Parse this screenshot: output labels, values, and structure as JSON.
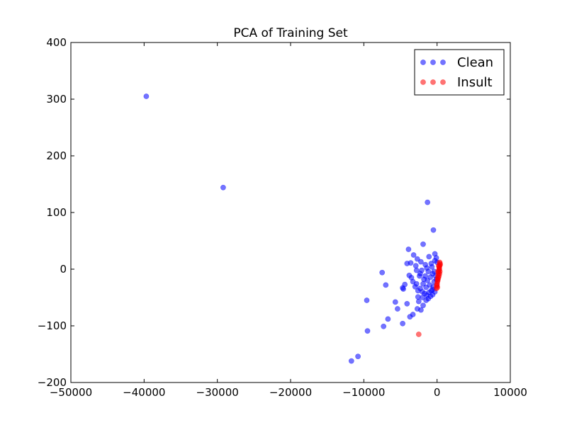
{
  "chart_data": {
    "type": "scatter",
    "title": "PCA of Training Set",
    "xlabel": "",
    "ylabel": "",
    "xlim": [
      -50000,
      10000
    ],
    "ylim": [
      -200,
      400
    ],
    "xticks": [
      -50000,
      -40000,
      -30000,
      -20000,
      -10000,
      0,
      10000
    ],
    "yticks": [
      -200,
      -100,
      0,
      100,
      200,
      300,
      400
    ],
    "grid": false,
    "legend_position": "top-right",
    "series": [
      {
        "name": "Clean",
        "color": "#0000ff",
        "opacity": 0.55,
        "points": [
          [
            -39700,
            305
          ],
          [
            -29200,
            144
          ],
          [
            -1300,
            118
          ],
          [
            -500,
            69
          ],
          [
            -1900,
            44
          ],
          [
            -3900,
            35
          ],
          [
            -3200,
            25
          ],
          [
            -300,
            27
          ],
          [
            -2700,
            18
          ],
          [
            -1100,
            22
          ],
          [
            -3600,
            11
          ],
          [
            -2200,
            13
          ],
          [
            -4100,
            10
          ],
          [
            -2900,
            6
          ],
          [
            -1600,
            8
          ],
          [
            -7500,
            -6
          ],
          [
            -3800,
            -11
          ],
          [
            -3500,
            -15
          ],
          [
            -2400,
            -12
          ],
          [
            -7000,
            -28
          ],
          [
            -4400,
            -27
          ],
          [
            -4700,
            -33
          ],
          [
            -4600,
            -35
          ],
          [
            -3300,
            -22
          ],
          [
            -2800,
            -26
          ],
          [
            -3000,
            -31
          ],
          [
            -2300,
            -34
          ],
          [
            -2000,
            -40
          ],
          [
            -1700,
            -43
          ],
          [
            -1400,
            -46
          ],
          [
            -1100,
            -41
          ],
          [
            -800,
            -38
          ],
          [
            -500,
            -31
          ],
          [
            -2600,
            -49
          ],
          [
            -1500,
            -55
          ],
          [
            -1200,
            -52
          ],
          [
            -2500,
            -57
          ],
          [
            -1900,
            -64
          ],
          [
            -2200,
            -72
          ],
          [
            -2700,
            -70
          ],
          [
            -4100,
            -61
          ],
          [
            -5700,
            -58
          ],
          [
            -5400,
            -70
          ],
          [
            -3300,
            -80
          ],
          [
            -3700,
            -84
          ],
          [
            -6700,
            -88
          ],
          [
            -9600,
            -55
          ],
          [
            -4700,
            -96
          ],
          [
            -7300,
            -101
          ],
          [
            -9500,
            -109
          ],
          [
            -10800,
            -154
          ],
          [
            -11700,
            -162
          ],
          [
            -600,
            -8
          ],
          [
            -900,
            -14
          ],
          [
            -1300,
            -20
          ],
          [
            -1800,
            -18
          ],
          [
            -2100,
            -2
          ],
          [
            -700,
            4
          ],
          [
            -400,
            -22
          ],
          [
            -1000,
            -28
          ],
          [
            -600,
            -36
          ],
          [
            -1500,
            -32
          ],
          [
            -200,
            -12
          ],
          [
            -300,
            15
          ],
          [
            -100,
            20
          ],
          [
            0,
            12
          ],
          [
            -800,
            10
          ],
          [
            -1400,
            2
          ],
          [
            -1900,
            -26
          ],
          [
            -2300,
            -8
          ],
          [
            -400,
            -4
          ],
          [
            -100,
            -18
          ],
          [
            -1200,
            -4
          ],
          [
            -2600,
            -38
          ],
          [
            -2000,
            -50
          ],
          [
            -900,
            -48
          ],
          [
            -600,
            -45
          ],
          [
            -300,
            -40
          ],
          [
            -1600,
            -12
          ],
          [
            -2800,
            -2
          ]
        ]
      },
      {
        "name": "Insult",
        "color": "#ff0000",
        "opacity": 0.55,
        "points": [
          [
            400,
            10
          ],
          [
            350,
            6
          ],
          [
            300,
            2
          ],
          [
            250,
            -2
          ],
          [
            200,
            -6
          ],
          [
            150,
            -10
          ],
          [
            120,
            -14
          ],
          [
            80,
            -18
          ],
          [
            40,
            -22
          ],
          [
            0,
            -26
          ],
          [
            -40,
            -30
          ],
          [
            -80,
            -34
          ],
          [
            380,
            -4
          ],
          [
            330,
            -8
          ],
          [
            280,
            4
          ],
          [
            430,
            8
          ],
          [
            260,
            -12
          ],
          [
            180,
            -16
          ],
          [
            100,
            -20
          ],
          [
            -20,
            -28
          ],
          [
            50,
            -32
          ],
          [
            300,
            0
          ],
          [
            220,
            6
          ],
          [
            140,
            -4
          ],
          [
            360,
            12
          ],
          [
            -2500,
            -115
          ]
        ]
      }
    ]
  }
}
